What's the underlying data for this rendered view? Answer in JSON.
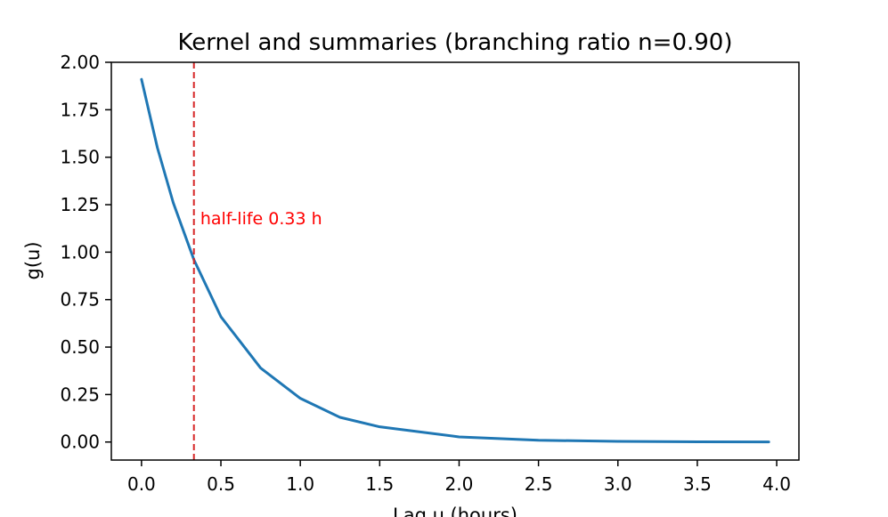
{
  "chart_data": {
    "type": "line",
    "title": "Kernel and summaries  (branching ratio n=0.90)",
    "xlabel": "Lag u (hours)",
    "ylabel": "g(u)",
    "xlim": [
      -0.19,
      4.14
    ],
    "ylim": [
      -0.095,
      2.0
    ],
    "xticks": [
      0.0,
      0.5,
      1.0,
      1.5,
      2.0,
      2.5,
      3.0,
      3.5,
      4.0
    ],
    "xtick_labels": [
      "0.0",
      "0.5",
      "1.0",
      "1.5",
      "2.0",
      "2.5",
      "3.0",
      "3.5",
      "4.0"
    ],
    "yticks": [
      0.0,
      0.25,
      0.5,
      0.75,
      1.0,
      1.25,
      1.5,
      1.75,
      2.0
    ],
    "ytick_labels": [
      "0.00",
      "0.25",
      "0.50",
      "0.75",
      "1.00",
      "1.25",
      "1.50",
      "1.75",
      "2.00"
    ],
    "grid": false,
    "series": [
      {
        "color": "#1f77b4",
        "x": [
          0.0,
          0.1,
          0.2,
          0.33,
          0.5,
          0.75,
          1.0,
          1.25,
          1.5,
          2.0,
          2.5,
          3.0,
          3.5,
          3.95
        ],
        "y": [
          1.91,
          1.55,
          1.26,
          0.96,
          0.66,
          0.39,
          0.23,
          0.13,
          0.08,
          0.027,
          0.0094,
          0.0032,
          0.0011,
          0.0004
        ]
      }
    ],
    "annotations": [
      {
        "type": "vline",
        "x": 0.33,
        "color": "#d62728",
        "style": "dashed"
      },
      {
        "type": "text",
        "text": "half-life 0.33 h",
        "x": 0.37,
        "y": 1.18,
        "color": "#ff0000"
      }
    ]
  }
}
